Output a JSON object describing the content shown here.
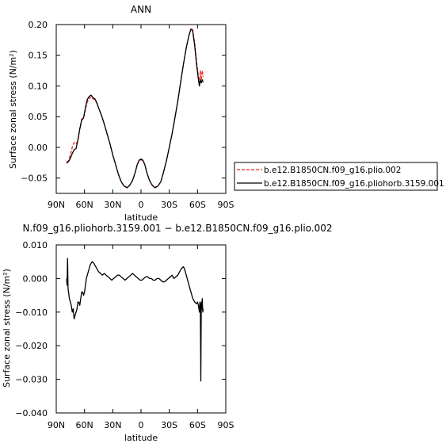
{
  "chart_data": [
    {
      "type": "line",
      "title": "ANN",
      "ylabel": "Surface zonal stress (N/m²)",
      "xlabel": "latitude",
      "xlim": [
        90,
        -90
      ],
      "ylim": [
        -0.075,
        0.2
      ],
      "x_ticks": [
        90,
        60,
        30,
        0,
        -30,
        -60,
        -90
      ],
      "x_tick_labels": [
        "90N",
        "60N",
        "30N",
        "0",
        "30S",
        "60S",
        "90S"
      ],
      "y_ticks": [
        -0.05,
        0.0,
        0.05,
        0.1,
        0.15,
        0.2
      ],
      "y_tick_labels": [
        "−0.05",
        "0.00",
        "0.05",
        "0.10",
        "0.15",
        "0.20"
      ],
      "legend_placement": "right",
      "series": [
        {
          "name": "b.e12.B1850CN.f09_g16.plio.002",
          "color": "#e8231f",
          "dash": true,
          "points": [
            [
              79,
              -0.024
            ],
            [
              77,
              -0.022
            ],
            [
              75,
              -0.012
            ],
            [
              73,
              0.0
            ],
            [
              71,
              0.008
            ],
            [
              69,
              0.006
            ],
            [
              67,
              0.01
            ],
            [
              65,
              0.03
            ],
            [
              63,
              0.046
            ],
            [
              61,
              0.048
            ],
            [
              59,
              0.062
            ],
            [
              57,
              0.074
            ],
            [
              55,
              0.08
            ],
            [
              53,
              0.082
            ],
            [
              51,
              0.079
            ],
            [
              49,
              0.078
            ],
            [
              47,
              0.072
            ],
            [
              45,
              0.064
            ],
            [
              42,
              0.052
            ],
            [
              39,
              0.038
            ],
            [
              36,
              0.022
            ],
            [
              33,
              0.006
            ],
            [
              30,
              -0.012
            ],
            [
              27,
              -0.028
            ],
            [
              24,
              -0.044
            ],
            [
              21,
              -0.056
            ],
            [
              18,
              -0.063
            ],
            [
              15,
              -0.065
            ],
            [
              12,
              -0.062
            ],
            [
              9,
              -0.054
            ],
            [
              6,
              -0.04
            ],
            [
              4,
              -0.028
            ],
            [
              2,
              -0.022
            ],
            [
              0,
              -0.02
            ],
            [
              -2,
              -0.022
            ],
            [
              -4,
              -0.028
            ],
            [
              -6,
              -0.04
            ],
            [
              -9,
              -0.054
            ],
            [
              -12,
              -0.062
            ],
            [
              -15,
              -0.065
            ],
            [
              -18,
              -0.063
            ],
            [
              -21,
              -0.056
            ],
            [
              -24,
              -0.04
            ],
            [
              -27,
              -0.022
            ],
            [
              -30,
              0.0
            ],
            [
              -33,
              0.022
            ],
            [
              -36,
              0.048
            ],
            [
              -39,
              0.075
            ],
            [
              -42,
              0.105
            ],
            [
              -45,
              0.135
            ],
            [
              -48,
              0.162
            ],
            [
              -51,
              0.183
            ],
            [
              -53,
              0.193
            ],
            [
              -54,
              0.194
            ],
            [
              -55,
              0.19
            ],
            [
              -57,
              0.17
            ],
            [
              -59,
              0.14
            ],
            [
              -61,
              0.115
            ],
            [
              -62,
              0.105
            ],
            [
              -63,
              0.125
            ],
            [
              -64,
              0.11
            ],
            [
              -65,
              0.125
            ],
            [
              -66,
              0.115
            ]
          ]
        },
        {
          "name": "b.e12.B1850CN.f09_g16.pliohorb.3159.001",
          "color": "#000000",
          "dash": false,
          "points": [
            [
              79,
              -0.026
            ],
            [
              77,
              -0.023
            ],
            [
              75,
              -0.018
            ],
            [
              73,
              -0.01
            ],
            [
              71,
              -0.004
            ],
            [
              69,
              -0.002
            ],
            [
              67,
              0.012
            ],
            [
              65,
              0.03
            ],
            [
              63,
              0.044
            ],
            [
              61,
              0.048
            ],
            [
              59,
              0.065
            ],
            [
              57,
              0.078
            ],
            [
              55,
              0.083
            ],
            [
              53,
              0.085
            ],
            [
              51,
              0.081
            ],
            [
              49,
              0.079
            ],
            [
              47,
              0.073
            ],
            [
              45,
              0.064
            ],
            [
              42,
              0.052
            ],
            [
              39,
              0.038
            ],
            [
              36,
              0.022
            ],
            [
              33,
              0.006
            ],
            [
              30,
              -0.012
            ],
            [
              27,
              -0.028
            ],
            [
              24,
              -0.044
            ],
            [
              21,
              -0.056
            ],
            [
              18,
              -0.063
            ],
            [
              15,
              -0.066
            ],
            [
              12,
              -0.062
            ],
            [
              9,
              -0.054
            ],
            [
              6,
              -0.04
            ],
            [
              4,
              -0.028
            ],
            [
              2,
              -0.021
            ],
            [
              0,
              -0.019
            ],
            [
              -2,
              -0.021
            ],
            [
              -4,
              -0.028
            ],
            [
              -6,
              -0.04
            ],
            [
              -9,
              -0.054
            ],
            [
              -12,
              -0.062
            ],
            [
              -15,
              -0.066
            ],
            [
              -18,
              -0.063
            ],
            [
              -21,
              -0.056
            ],
            [
              -24,
              -0.04
            ],
            [
              -27,
              -0.022
            ],
            [
              -30,
              0.0
            ],
            [
              -33,
              0.022
            ],
            [
              -36,
              0.048
            ],
            [
              -39,
              0.075
            ],
            [
              -42,
              0.105
            ],
            [
              -45,
              0.135
            ],
            [
              -48,
              0.162
            ],
            [
              -51,
              0.183
            ],
            [
              -53,
              0.192
            ],
            [
              -54,
              0.192
            ],
            [
              -55,
              0.188
            ],
            [
              -57,
              0.165
            ],
            [
              -59,
              0.135
            ],
            [
              -61,
              0.11
            ],
            [
              -62,
              0.1
            ],
            [
              -63,
              0.11
            ],
            [
              -64,
              0.105
            ],
            [
              -65,
              0.11
            ],
            [
              -66,
              0.106
            ]
          ]
        }
      ]
    },
    {
      "type": "line",
      "title": "N.f09_g16.pliohorb.3159.001 − b.e12.B1850CN.f09_g16.plio.002",
      "ylabel": "Surface zonal stress (N/m²)",
      "xlabel": "latitude",
      "xlim": [
        90,
        -90
      ],
      "ylim": [
        -0.04,
        0.01
      ],
      "x_ticks": [
        90,
        60,
        30,
        0,
        -30,
        -60,
        -90
      ],
      "x_tick_labels": [
        "90N",
        "60N",
        "30N",
        "0",
        "30S",
        "60S",
        "90S"
      ],
      "y_ticks": [
        -0.04,
        -0.03,
        -0.02,
        -0.01,
        0.0,
        0.01
      ],
      "y_tick_labels": [
        "−0.040",
        "−0.030",
        "−0.020",
        "−0.010",
        "0.000",
        "0.010"
      ],
      "series": [
        {
          "color": "#000000",
          "dash": false,
          "points": [
            [
              79,
              0.0
            ],
            [
              78.5,
              -0.002
            ],
            [
              78,
              0.006
            ],
            [
              77.5,
              -0.003
            ],
            [
              77,
              -0.004
            ],
            [
              76,
              -0.006
            ],
            [
              75,
              -0.007
            ],
            [
              74,
              -0.008
            ],
            [
              73,
              -0.01
            ],
            [
              72,
              -0.009
            ],
            [
              71,
              -0.012
            ],
            [
              70,
              -0.011
            ],
            [
              69,
              -0.01
            ],
            [
              68,
              -0.009
            ],
            [
              67,
              -0.007
            ],
            [
              66,
              -0.007
            ],
            [
              65,
              -0.008
            ],
            [
              64,
              -0.006
            ],
            [
              63,
              -0.004
            ],
            [
              62,
              -0.004
            ],
            [
              61,
              -0.005
            ],
            [
              60,
              -0.004
            ],
            [
              59,
              -0.002
            ],
            [
              58,
              0.0
            ],
            [
              57,
              0.001
            ],
            [
              56,
              0.002
            ],
            [
              55,
              0.003
            ],
            [
              54,
              0.004
            ],
            [
              53,
              0.0045
            ],
            [
              52,
              0.005
            ],
            [
              51,
              0.0048
            ],
            [
              50,
              0.0045
            ],
            [
              49,
              0.004
            ],
            [
              47,
              0.003
            ],
            [
              45,
              0.002
            ],
            [
              43,
              0.0015
            ],
            [
              41,
              0.001
            ],
            [
              39,
              0.0015
            ],
            [
              37,
              0.001
            ],
            [
              35,
              0.0005
            ],
            [
              33,
              0.0
            ],
            [
              31,
              -0.0005
            ],
            [
              29,
              0.0
            ],
            [
              27,
              0.0005
            ],
            [
              25,
              0.001
            ],
            [
              23,
              0.001
            ],
            [
              21,
              0.0005
            ],
            [
              19,
              0.0
            ],
            [
              17,
              -0.0005
            ],
            [
              15,
              0.0
            ],
            [
              13,
              0.0005
            ],
            [
              11,
              0.001
            ],
            [
              9,
              0.0015
            ],
            [
              7,
              0.001
            ],
            [
              5,
              0.0005
            ],
            [
              3,
              0.0
            ],
            [
              1,
              -0.0005
            ],
            [
              -1,
              -0.0005
            ],
            [
              -3,
              0.0
            ],
            [
              -5,
              0.0005
            ],
            [
              -7,
              0.0005
            ],
            [
              -9,
              0.0
            ],
            [
              -11,
              0.0
            ],
            [
              -13,
              -0.0005
            ],
            [
              -15,
              -0.0005
            ],
            [
              -17,
              0.0
            ],
            [
              -19,
              0.0
            ],
            [
              -21,
              -0.0005
            ],
            [
              -23,
              -0.001
            ],
            [
              -25,
              -0.001
            ],
            [
              -27,
              -0.0005
            ],
            [
              -29,
              0.0
            ],
            [
              -31,
              0.0005
            ],
            [
              -33,
              0.001
            ],
            [
              -35,
              0.0
            ],
            [
              -37,
              0.0005
            ],
            [
              -39,
              0.001
            ],
            [
              -41,
              0.002
            ],
            [
              -43,
              0.003
            ],
            [
              -45,
              0.0035
            ],
            [
              -46,
              0.003
            ],
            [
              -47,
              0.002
            ],
            [
              -49,
              0.0
            ],
            [
              -51,
              -0.002
            ],
            [
              -53,
              -0.004
            ],
            [
              -55,
              -0.006
            ],
            [
              -57,
              -0.007
            ],
            [
              -59,
              -0.0075
            ],
            [
              -60,
              -0.007
            ],
            [
              -61,
              -0.008
            ],
            [
              -62,
              -0.01
            ],
            [
              -62.5,
              -0.007
            ],
            [
              -63,
              -0.008
            ],
            [
              -63.5,
              -0.0305
            ],
            [
              -64,
              -0.007
            ],
            [
              -64.5,
              -0.009
            ],
            [
              -65,
              -0.006
            ],
            [
              -65.5,
              -0.01
            ],
            [
              -66,
              -0.009
            ]
          ]
        }
      ]
    }
  ]
}
